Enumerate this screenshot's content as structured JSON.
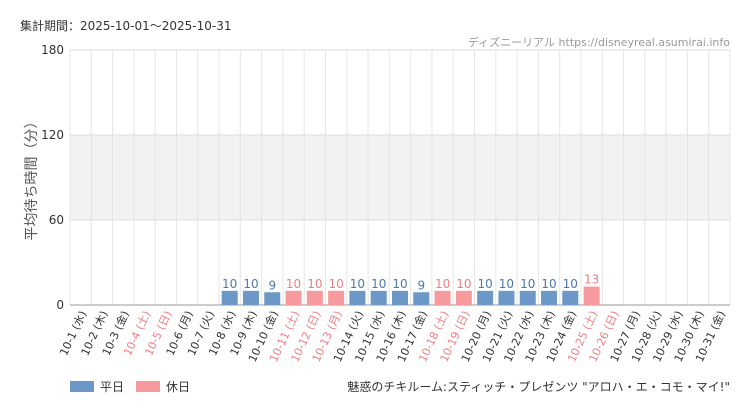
{
  "header": {
    "period": "集計期間：2025-10-01～2025-10-31",
    "site": "ディズニーリアル https://disneyreal.asumirai.info"
  },
  "legend": {
    "weekday_label": "平日",
    "holiday_label": "休日"
  },
  "attraction_name": "魅惑のチキルーム:スティッチ・プレゼンツ \"アロハ・エ・コモ・マイ!\"",
  "colors": {
    "weekday": "#6b98c6",
    "holiday": "#f79a9e",
    "weekday_text": "#4a78b0",
    "holiday_text": "#ee7e83",
    "band": "#f2f2f2",
    "grid": "#e6e6e6"
  },
  "chart_data": {
    "type": "bar",
    "ylabel": "平均待ち時間（分）",
    "ylim": [
      0,
      180
    ],
    "yticks": [
      0,
      60,
      120,
      180
    ],
    "grid": true,
    "legend_position": "bottom-left",
    "categories": [
      "10-1 (水)",
      "10-2 (木)",
      "10-3 (金)",
      "10-4 (土)",
      "10-5 (日)",
      "10-6 (月)",
      "10-7 (火)",
      "10-8 (水)",
      "10-9 (木)",
      "10-10 (金)",
      "10-11 (土)",
      "10-12 (日)",
      "10-13 (月)",
      "10-14 (火)",
      "10-15 (水)",
      "10-16 (木)",
      "10-17 (金)",
      "10-18 (土)",
      "10-19 (日)",
      "10-20 (月)",
      "10-21 (火)",
      "10-22 (水)",
      "10-23 (木)",
      "10-24 (金)",
      "10-25 (土)",
      "10-26 (日)",
      "10-27 (月)",
      "10-28 (火)",
      "10-29 (水)",
      "10-30 (木)",
      "10-31 (金)"
    ],
    "day_type": [
      "weekday",
      "weekday",
      "weekday",
      "holiday",
      "holiday",
      "weekday",
      "weekday",
      "weekday",
      "weekday",
      "weekday",
      "holiday",
      "holiday",
      "holiday",
      "weekday",
      "weekday",
      "weekday",
      "weekday",
      "holiday",
      "holiday",
      "weekday",
      "weekday",
      "weekday",
      "weekday",
      "weekday",
      "holiday",
      "holiday",
      "weekday",
      "weekday",
      "weekday",
      "weekday",
      "weekday"
    ],
    "values": [
      null,
      null,
      null,
      null,
      null,
      null,
      null,
      10,
      10,
      9,
      10,
      10,
      10,
      10,
      10,
      10,
      9,
      10,
      10,
      10,
      10,
      10,
      10,
      10,
      13,
      null,
      null,
      null,
      null,
      null,
      null
    ]
  }
}
